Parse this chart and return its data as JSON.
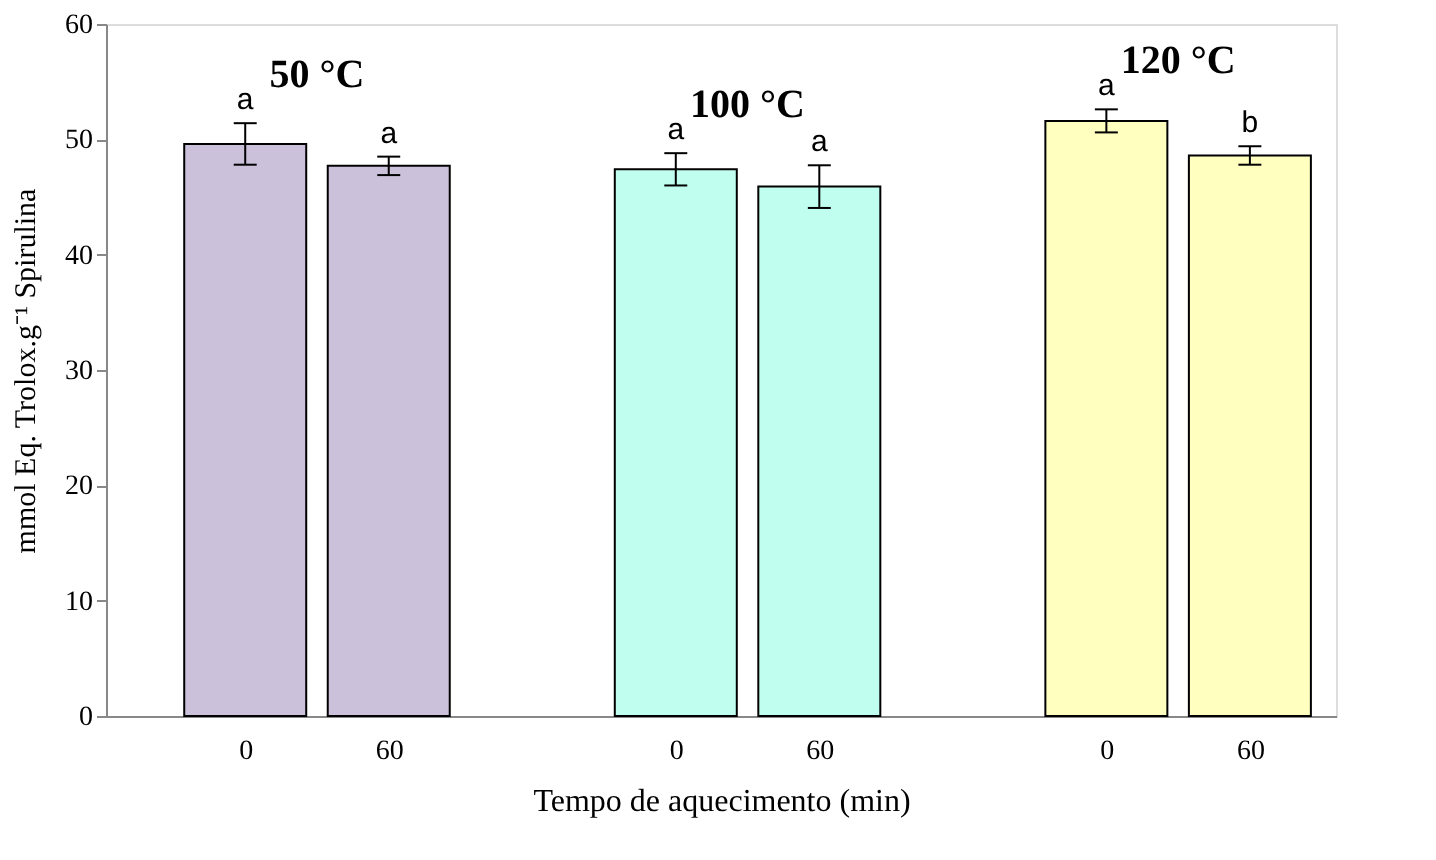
{
  "chart_data": {
    "type": "bar",
    "xlabel": "Tempo de aquecimento (min)",
    "ylabel": "mmol Eq. Trolox.g⁻¹ Spirulina",
    "categories": [
      "0",
      "60",
      null,
      "0",
      "60",
      null,
      "0",
      "60"
    ],
    "values": [
      49.6,
      47.7,
      null,
      47.4,
      45.9,
      null,
      51.6,
      48.6
    ],
    "errors": [
      1.8,
      0.8,
      null,
      1.4,
      1.85,
      null,
      1.0,
      0.8
    ],
    "colors": [
      "#ccc1da",
      "#ccc1da",
      null,
      "#c0fff0",
      "#c0fff0",
      null,
      "#ffffc0",
      "#ffffc0"
    ],
    "value_labels": [
      "a",
      "a",
      null,
      "a",
      "a",
      null,
      "a",
      "b"
    ],
    "annotations": [
      "50 °C",
      "100 °C",
      "120 °C"
    ],
    "ylim": [
      0,
      60
    ],
    "yticks": [
      0,
      10,
      20,
      30,
      40,
      50,
      60
    ],
    "grid": false
  }
}
